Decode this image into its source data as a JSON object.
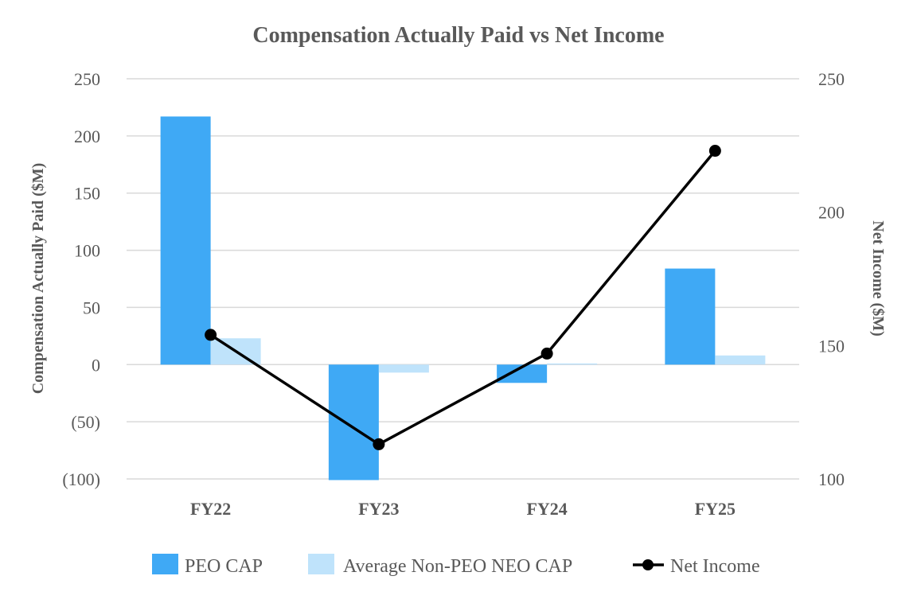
{
  "chart_data": {
    "type": "bar",
    "title": "Compensation Actually Paid vs Net Income",
    "categories": [
      "FY22",
      "FY23",
      "FY24",
      "FY25"
    ],
    "series": [
      {
        "name": "PEO CAP",
        "kind": "bar",
        "axis": "left",
        "color": "#3fa9f5",
        "values": [
          217,
          -101,
          -16,
          84
        ]
      },
      {
        "name": "Average Non-PEO NEO CAP",
        "kind": "bar",
        "axis": "left",
        "color": "#bfe3fb",
        "values": [
          23,
          -7,
          1,
          8
        ]
      },
      {
        "name": "Net Income",
        "kind": "line",
        "axis": "right",
        "color": "#000000",
        "values": [
          154,
          113,
          147,
          223
        ]
      }
    ],
    "y_left": {
      "label": "Compensation Actually Paid ($M)",
      "range": [
        -100,
        250
      ],
      "ticks": [
        250,
        200,
        150,
        100,
        50,
        0,
        -50,
        -100
      ],
      "tick_labels": [
        "250",
        "200",
        "150",
        "100",
        "50",
        "0",
        "(50)",
        "(100)"
      ]
    },
    "y_right": {
      "label": "Net Income ($M)",
      "range": [
        100,
        250
      ],
      "ticks": [
        250,
        200,
        150,
        100
      ],
      "tick_labels": [
        "250",
        "200",
        "150",
        "100"
      ]
    },
    "grid": true,
    "legend": {
      "position": "bottom",
      "entries": [
        "PEO CAP",
        "Average Non-PEO NEO CAP",
        "Net Income"
      ]
    }
  }
}
